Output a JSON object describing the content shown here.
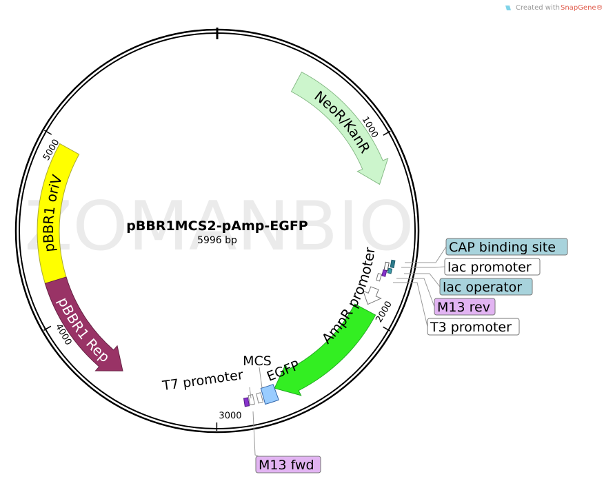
{
  "header": {
    "credit": "Created with",
    "brand": "SnapGene®"
  },
  "map": {
    "name": "pBBR1MCS2-pAmp-EGFP",
    "length": {
      "value": 5996,
      "label": "5996 bp"
    },
    "watermark": "ZOMANBIO",
    "ticks": [
      1000,
      2000,
      3000,
      4000,
      5000
    ]
  },
  "features": [
    {
      "label": "NeoR/KanR"
    },
    {
      "label": "pBBR1 oriV"
    },
    {
      "label": "pBBR1 Rep"
    },
    {
      "label": "AmpR promoter"
    },
    {
      "label": "CAP binding site"
    },
    {
      "label": "lac promoter"
    },
    {
      "label": "lac operator"
    },
    {
      "label": "M13 rev"
    },
    {
      "label": "T3 promoter"
    },
    {
      "label": "MCS"
    },
    {
      "label": "EGFP"
    },
    {
      "label": "T7 promoter"
    },
    {
      "label": "M13 fwd"
    }
  ]
}
